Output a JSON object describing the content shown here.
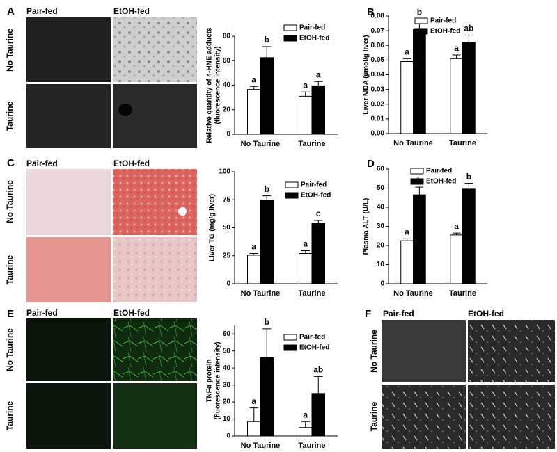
{
  "panel_letters": [
    "A",
    "B",
    "C",
    "D",
    "E",
    "F"
  ],
  "micrographs": [
    {
      "columns": [
        "Pair-fed",
        "EtOH-fed"
      ],
      "rows": [
        "No Taurine",
        "Taurine"
      ]
    },
    {
      "columns": [
        "Pair-fed",
        "EtOH-fed"
      ],
      "rows": [
        "No Taurine",
        "Taurine"
      ]
    },
    {
      "columns": [
        "Pair-fed",
        "EtOH-fed"
      ],
      "rows": [
        "No Taurine",
        "Taurine"
      ]
    },
    {
      "columns": [
        "Pair-fed",
        "EtOH-fed"
      ],
      "rows": [
        "No Taurine",
        "Taurine"
      ]
    }
  ],
  "chart_data": [
    {
      "type": "bar",
      "ylabel": [
        "Relative quantity of 4-HNE adducts",
        "(fluorescence intensity)"
      ],
      "categories": [
        "No Taurine",
        "Taurine"
      ],
      "series": [
        {
          "name": "Pair-fed",
          "color": "#ffffff",
          "values": [
            36.5,
            31
          ],
          "errors": [
            2.5,
            3.5
          ],
          "letters": [
            "a",
            "a"
          ]
        },
        {
          "name": "EtOH-fed",
          "color": "#000000",
          "values": [
            62.5,
            39.5
          ],
          "errors": [
            9,
            3.5
          ],
          "letters": [
            "b",
            "a"
          ]
        }
      ],
      "ylim": [
        0,
        80
      ],
      "yticks": [
        0,
        20,
        40,
        60,
        80
      ]
    },
    {
      "type": "bar",
      "ylabel": [
        "Liver MDA (µmol/g liver)"
      ],
      "categories": [
        "No Taurine",
        "Taurine"
      ],
      "series": [
        {
          "name": "Pair-fed",
          "color": "#ffffff",
          "values": [
            0.049,
            0.051
          ],
          "errors": [
            0.002,
            0.0025
          ],
          "letters": [
            "a",
            "a"
          ]
        },
        {
          "name": "EtOH-fed",
          "color": "#000000",
          "values": [
            0.071,
            0.062
          ],
          "errors": [
            0.007,
            0.005
          ],
          "letters": [
            "b",
            "ab"
          ]
        }
      ],
      "ylim": [
        0,
        0.08
      ],
      "yticks": [
        {
          "value": 0,
          "label": "0.00"
        },
        0.01,
        0.02,
        0.03,
        0.04,
        0.05,
        0.06,
        0.07,
        0.08
      ]
    },
    {
      "type": "bar",
      "ylabel": [
        "Liver TG (mg/g liver)"
      ],
      "categories": [
        "No Taurine",
        "Taurine"
      ],
      "series": [
        {
          "name": "Pair-fed",
          "color": "#ffffff",
          "values": [
            25.5,
            27
          ],
          "errors": [
            1.5,
            2.5
          ],
          "letters": [
            "a",
            "a"
          ]
        },
        {
          "name": "EtOH-fed",
          "color": "#000000",
          "values": [
            74.5,
            54
          ],
          "errors": [
            4,
            2.5
          ],
          "letters": [
            "b",
            "c"
          ]
        }
      ],
      "ylim": [
        0,
        100
      ],
      "yticks": [
        0,
        25,
        50,
        75,
        100
      ]
    },
    {
      "type": "bar",
      "ylabel": [
        "Plasma ALT (U/L)"
      ],
      "categories": [
        "No Taurine",
        "Taurine"
      ],
      "series": [
        {
          "name": "Pair-fed",
          "color": "#ffffff",
          "values": [
            22.5,
            25.5
          ],
          "errors": [
            1,
            1
          ],
          "letters": [
            "a",
            "a"
          ]
        },
        {
          "name": "EtOH-fed",
          "color": "#000000",
          "values": [
            46.5,
            49.5
          ],
          "errors": [
            4,
            3
          ],
          "letters": [
            "b",
            "b"
          ]
        }
      ],
      "ylim": [
        0,
        60
      ],
      "yticks": [
        0,
        10,
        20,
        30,
        40,
        50,
        60
      ]
    },
    {
      "type": "bar",
      "ylabel": [
        "TNFα protein",
        "(fluorescence intensity)"
      ],
      "categories": [
        "No Taurine",
        "Taurine"
      ],
      "series": [
        {
          "name": "Pair-fed",
          "color": "#ffffff",
          "values": [
            8.5,
            5
          ],
          "errors": [
            8,
            3.5
          ],
          "letters": [
            "a",
            "a"
          ]
        },
        {
          "name": "EtOH-fed",
          "color": "#000000",
          "values": [
            46,
            25
          ],
          "errors": [
            17,
            10
          ],
          "letters": [
            "b",
            "ab"
          ]
        }
      ],
      "ylim": [
        0,
        65
      ],
      "yticks": [
        0,
        10,
        20,
        30,
        40,
        50,
        60
      ]
    }
  ]
}
